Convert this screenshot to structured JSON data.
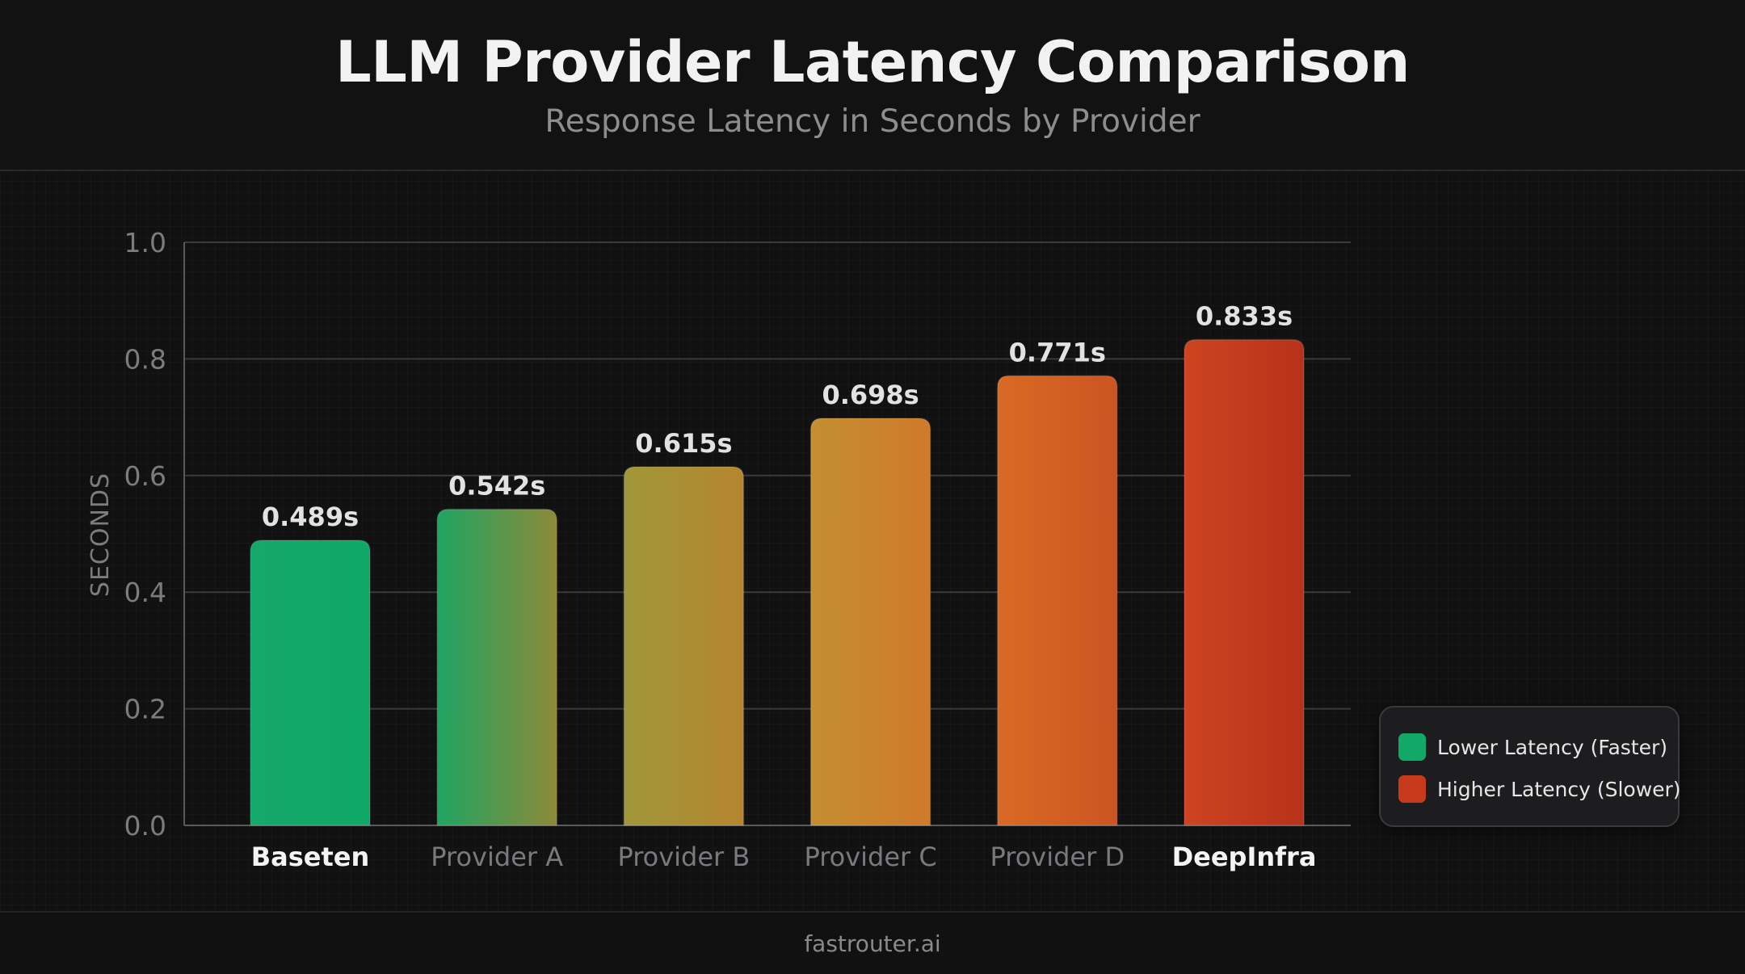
{
  "title": "LLM Provider Latency Comparison",
  "subtitle": "Response Latency in Seconds by Provider",
  "footer": "fastrouter.ai",
  "legend": {
    "items": [
      {
        "label": "Lower Latency (Faster)",
        "color": "#12a968"
      },
      {
        "label": "Higher Latency (Slower)",
        "color": "#c63a1b"
      }
    ],
    "placement": "bottom-right"
  },
  "chart_data": {
    "type": "bar",
    "title": "LLM Provider Latency Comparison",
    "subtitle": "Response Latency in Seconds by Provider",
    "xlabel": "",
    "ylabel": "SECONDS",
    "ylim": [
      0,
      1.0
    ],
    "yticks": [
      "0.0",
      "0.2",
      "0.4",
      "0.6",
      "0.8",
      "1.0"
    ],
    "grid": true,
    "categories": [
      "Baseten",
      "Provider A",
      "Provider B",
      "Provider C",
      "Provider D",
      "DeepInfra"
    ],
    "values": [
      0.489,
      0.542,
      0.615,
      0.698,
      0.771,
      0.833
    ],
    "data_labels": [
      "0.489s",
      "0.542s",
      "0.615s",
      "0.698s",
      "0.771s",
      "0.833s"
    ],
    "highlighted_categories": [
      "Baseten",
      "DeepInfra"
    ],
    "bar_colors": [
      [
        "#14a86a",
        "#10a866"
      ],
      [
        "#1fa463",
        "#8c8a38"
      ],
      [
        "#a0973a",
        "#b5852f"
      ],
      [
        "#c38f30",
        "#d0792a"
      ],
      [
        "#d96a24",
        "#cc5422"
      ],
      [
        "#cc4420",
        "#b8321a"
      ]
    ],
    "colors": {
      "low": "#12a968",
      "high": "#c63a1b",
      "grid": "#3a3a3c",
      "axis": "#5a5a5c",
      "tick_label": "#7c7c80",
      "data_label": "#e2e2e2",
      "category_normal": "#7a7a7e",
      "category_highlight": "#f4f4f4"
    }
  }
}
